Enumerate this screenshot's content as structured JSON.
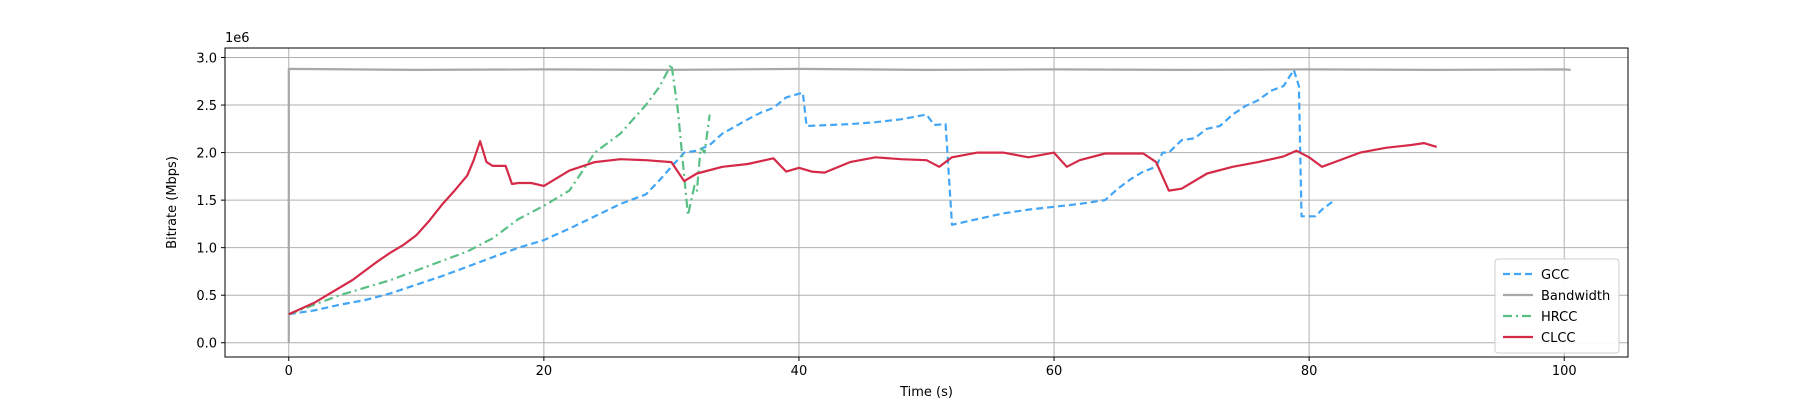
{
  "chart_data": {
    "type": "line",
    "xlabel": "Time (s)",
    "ylabel": "Bitrate (Mbps)",
    "offset_text": "1e6",
    "xlim": [
      -5,
      105
    ],
    "ylim": [
      -150000,
      3100000
    ],
    "xticks": [
      0,
      20,
      40,
      60,
      80,
      100
    ],
    "yticks": [
      0,
      500000,
      1000000,
      1500000,
      2000000,
      2500000,
      3000000
    ],
    "ytick_labels": [
      "0.0",
      "0.5",
      "1.0",
      "1.5",
      "2.0",
      "2.5",
      "3.0"
    ],
    "grid": true,
    "legend_position": "lower-right",
    "series": [
      {
        "name": "GCC",
        "color": "#42a5f5",
        "style": "dashed",
        "points": [
          [
            0,
            300000
          ],
          [
            2,
            340000
          ],
          [
            4,
            400000
          ],
          [
            6,
            450000
          ],
          [
            8,
            520000
          ],
          [
            10,
            610000
          ],
          [
            12,
            700000
          ],
          [
            14,
            800000
          ],
          [
            16,
            900000
          ],
          [
            18,
            1000000
          ],
          [
            20,
            1080000
          ],
          [
            22,
            1200000
          ],
          [
            24,
            1330000
          ],
          [
            26,
            1460000
          ],
          [
            28,
            1560000
          ],
          [
            29,
            1700000
          ],
          [
            30,
            1850000
          ],
          [
            31,
            2000000
          ],
          [
            32,
            2020000
          ],
          [
            33,
            2080000
          ],
          [
            34,
            2200000
          ],
          [
            36,
            2350000
          ],
          [
            37,
            2420000
          ],
          [
            38,
            2470000
          ],
          [
            39,
            2580000
          ],
          [
            40.3,
            2630000
          ],
          [
            40.6,
            2280000
          ],
          [
            44,
            2300000
          ],
          [
            46,
            2320000
          ],
          [
            48,
            2350000
          ],
          [
            50,
            2400000
          ],
          [
            50.6,
            2290000
          ],
          [
            51.5,
            2300000
          ],
          [
            52,
            1240000
          ],
          [
            54,
            1300000
          ],
          [
            56,
            1360000
          ],
          [
            58,
            1400000
          ],
          [
            60,
            1430000
          ],
          [
            62,
            1460000
          ],
          [
            64,
            1500000
          ],
          [
            65,
            1620000
          ],
          [
            66,
            1720000
          ],
          [
            67,
            1800000
          ],
          [
            68,
            1850000
          ],
          [
            68.5,
            2000000
          ],
          [
            69,
            2000000
          ],
          [
            70,
            2130000
          ],
          [
            71,
            2150000
          ],
          [
            72,
            2250000
          ],
          [
            73,
            2280000
          ],
          [
            74,
            2400000
          ],
          [
            75,
            2490000
          ],
          [
            76,
            2550000
          ],
          [
            77,
            2650000
          ],
          [
            78,
            2700000
          ],
          [
            78.8,
            2870000
          ],
          [
            79.2,
            2700000
          ],
          [
            79.4,
            1330000
          ],
          [
            80.5,
            1330000
          ],
          [
            81,
            1400000
          ],
          [
            81.8,
            1480000
          ]
        ]
      },
      {
        "name": "Bandwidth",
        "color": "#a8a8a8",
        "style": "solid",
        "points": [
          [
            0,
            0
          ],
          [
            0,
            2880000
          ],
          [
            10,
            2870000
          ],
          [
            20,
            2875000
          ],
          [
            30,
            2870000
          ],
          [
            40,
            2880000
          ],
          [
            50,
            2870000
          ],
          [
            60,
            2875000
          ],
          [
            70,
            2870000
          ],
          [
            80,
            2875000
          ],
          [
            90,
            2870000
          ],
          [
            100,
            2875000
          ],
          [
            100.5,
            2870000
          ]
        ]
      },
      {
        "name": "HRCC",
        "color": "#5abf85",
        "style": "dashdot",
        "points": [
          [
            0,
            300000
          ],
          [
            2,
            400000
          ],
          [
            4,
            500000
          ],
          [
            6,
            580000
          ],
          [
            8,
            660000
          ],
          [
            10,
            760000
          ],
          [
            12,
            860000
          ],
          [
            14,
            960000
          ],
          [
            16,
            1100000
          ],
          [
            18,
            1300000
          ],
          [
            20,
            1440000
          ],
          [
            22,
            1600000
          ],
          [
            23,
            1800000
          ],
          [
            24,
            2000000
          ],
          [
            25,
            2100000
          ],
          [
            26,
            2200000
          ],
          [
            27,
            2350000
          ],
          [
            28,
            2500000
          ],
          [
            29,
            2680000
          ],
          [
            30,
            2930000
          ],
          [
            30.5,
            2450000
          ],
          [
            31,
            1750000
          ],
          [
            31.3,
            1340000
          ],
          [
            31.8,
            1650000
          ],
          [
            32,
            1600000
          ],
          [
            32.3,
            2050000
          ],
          [
            32.6,
            2000000
          ],
          [
            33,
            2400000
          ]
        ]
      },
      {
        "name": "CLCC",
        "color": "#d42a48",
        "style": "solid",
        "points": [
          [
            0,
            300000
          ],
          [
            1,
            360000
          ],
          [
            2,
            420000
          ],
          [
            3,
            500000
          ],
          [
            4,
            580000
          ],
          [
            5,
            660000
          ],
          [
            6,
            760000
          ],
          [
            7,
            860000
          ],
          [
            8,
            950000
          ],
          [
            9,
            1030000
          ],
          [
            10,
            1130000
          ],
          [
            11,
            1280000
          ],
          [
            12,
            1450000
          ],
          [
            13,
            1600000
          ],
          [
            14,
            1760000
          ],
          [
            14.5,
            1920000
          ],
          [
            15,
            2120000
          ],
          [
            15.5,
            1900000
          ],
          [
            16,
            1860000
          ],
          [
            17,
            1860000
          ],
          [
            17.5,
            1670000
          ],
          [
            18,
            1680000
          ],
          [
            19,
            1680000
          ],
          [
            20,
            1650000
          ],
          [
            22,
            1810000
          ],
          [
            24,
            1900000
          ],
          [
            26,
            1930000
          ],
          [
            28,
            1920000
          ],
          [
            30,
            1900000
          ],
          [
            31,
            1700000
          ],
          [
            32,
            1780000
          ],
          [
            34,
            1850000
          ],
          [
            36,
            1880000
          ],
          [
            38,
            1940000
          ],
          [
            39,
            1800000
          ],
          [
            40,
            1840000
          ],
          [
            41,
            1800000
          ],
          [
            42,
            1790000
          ],
          [
            44,
            1900000
          ],
          [
            46,
            1950000
          ],
          [
            48,
            1930000
          ],
          [
            50,
            1920000
          ],
          [
            51,
            1850000
          ],
          [
            52,
            1950000
          ],
          [
            54,
            2000000
          ],
          [
            56,
            2000000
          ],
          [
            58,
            1950000
          ],
          [
            60,
            2000000
          ],
          [
            61,
            1850000
          ],
          [
            62,
            1920000
          ],
          [
            64,
            1990000
          ],
          [
            66,
            1990000
          ],
          [
            67,
            1990000
          ],
          [
            68,
            1900000
          ],
          [
            69,
            1600000
          ],
          [
            70,
            1620000
          ],
          [
            72,
            1780000
          ],
          [
            74,
            1850000
          ],
          [
            76,
            1900000
          ],
          [
            78,
            1960000
          ],
          [
            79,
            2020000
          ],
          [
            80,
            1950000
          ],
          [
            81,
            1850000
          ],
          [
            82,
            1900000
          ],
          [
            84,
            2000000
          ],
          [
            86,
            2050000
          ],
          [
            88,
            2080000
          ],
          [
            89,
            2100000
          ],
          [
            90,
            2060000
          ]
        ]
      }
    ]
  }
}
